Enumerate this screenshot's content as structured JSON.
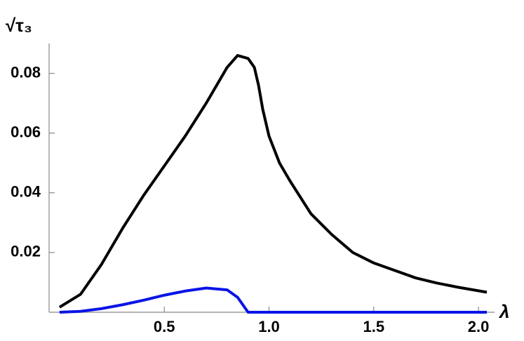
{
  "chart_data": {
    "type": "line",
    "y_label": "√τ₃",
    "x_label": "λ",
    "x": [
      0,
      0.1,
      0.2,
      0.3,
      0.4,
      0.5,
      0.6,
      0.7,
      0.8,
      0.85,
      0.9,
      0.93,
      0.95,
      0.97,
      1.0,
      1.05,
      1.1,
      1.2,
      1.3,
      1.4,
      1.5,
      1.6,
      1.7,
      1.8,
      1.9,
      2.04
    ],
    "series": [
      {
        "color": "#000000",
        "values": [
          0.0017,
          0.006,
          0.016,
          0.028,
          0.039,
          0.049,
          0.059,
          0.07,
          0.082,
          0.086,
          0.085,
          0.082,
          0.076,
          0.068,
          0.059,
          0.05,
          0.044,
          0.033,
          0.026,
          0.02,
          0.0165,
          0.014,
          0.0115,
          0.0098,
          0.0084,
          0.0067
        ]
      },
      {
        "color": "#0a14e6",
        "values": [
          0,
          0.0003,
          0.0012,
          0.0025,
          0.004,
          0.0057,
          0.0071,
          0.0081,
          0.0075,
          0.005,
          0,
          0,
          0,
          0,
          0,
          0,
          0,
          0,
          0,
          0,
          0,
          0,
          0,
          0,
          0,
          0
        ]
      }
    ],
    "xlim": [
      -0.05,
      2.05
    ],
    "ylim": [
      0,
      0.09
    ],
    "xticks": [
      0.5,
      {
        "value": 1,
        "label": "1.0"
      },
      1.5,
      {
        "value": 2,
        "label": "2.0"
      }
    ],
    "yticks": [
      0.02,
      0.04,
      0.06,
      0.08
    ]
  }
}
